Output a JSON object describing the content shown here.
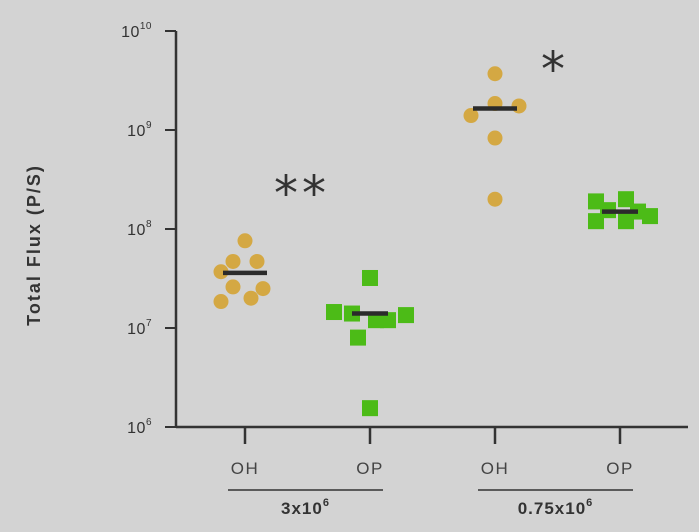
{
  "chart_data": {
    "type": "scatter",
    "ylabel": "Total Flux (P/S)",
    "y_scale": "log",
    "ylim": [
      1000000,
      10000000000
    ],
    "y_ticks": [
      {
        "base": "10",
        "exp": "6"
      },
      {
        "base": "10",
        "exp": "7"
      },
      {
        "base": "10",
        "exp": "8"
      },
      {
        "base": "10",
        "exp": "9"
      },
      {
        "base": "10",
        "exp": "10"
      }
    ],
    "categories": [
      "OH",
      "OP",
      "OH",
      "OP"
    ],
    "groups": [
      {
        "base": "3x10",
        "exp": "6",
        "categories": [
          0,
          1
        ]
      },
      {
        "base": "0.75x10",
        "exp": "6",
        "categories": [
          2,
          3
        ]
      }
    ],
    "significance": [
      {
        "label": "**",
        "category": 0
      },
      {
        "label": "*",
        "category": 2
      }
    ],
    "colors": {
      "OH": "#d4a843",
      "OP": "#4cbb17",
      "median": "#2b2b2b",
      "axis": "#333333",
      "background": "#d3d3d3"
    },
    "series": [
      {
        "category": 0,
        "marker": "circle",
        "median": 36000000,
        "points": [
          {
            "o": 0,
            "v": 76000000
          },
          {
            "o": -1,
            "v": 47000000
          },
          {
            "o": 1,
            "v": 47000000
          },
          {
            "o": -2,
            "v": 37000000
          },
          {
            "o": -1,
            "v": 26000000
          },
          {
            "o": 1.5,
            "v": 25000000
          },
          {
            "o": -2,
            "v": 18500000
          },
          {
            "o": 0.5,
            "v": 20000000
          }
        ]
      },
      {
        "category": 1,
        "marker": "square",
        "median": 14000000,
        "points": [
          {
            "o": 0,
            "v": 32000000
          },
          {
            "o": -3,
            "v": 14500000
          },
          {
            "o": -1.5,
            "v": 14000000
          },
          {
            "o": 0.5,
            "v": 12000000
          },
          {
            "o": 1.5,
            "v": 12000000
          },
          {
            "o": 3,
            "v": 13500000
          },
          {
            "o": -1,
            "v": 8000000
          },
          {
            "o": 0,
            "v": 1550000
          }
        ]
      },
      {
        "category": 2,
        "marker": "circle",
        "median": 1650000000,
        "points": [
          {
            "o": 0,
            "v": 3700000000
          },
          {
            "o": 0,
            "v": 1850000000
          },
          {
            "o": 2,
            "v": 1750000000
          },
          {
            "o": -2,
            "v": 1400000000
          },
          {
            "o": 0,
            "v": 830000000
          },
          {
            "o": 0,
            "v": 200000000
          }
        ]
      },
      {
        "category": 3,
        "marker": "square",
        "median": 150000000,
        "points": [
          {
            "o": -2,
            "v": 190000000
          },
          {
            "o": 0.5,
            "v": 200000000
          },
          {
            "o": -1,
            "v": 155000000
          },
          {
            "o": 1.5,
            "v": 150000000
          },
          {
            "o": 2.5,
            "v": 135000000
          },
          {
            "o": -2,
            "v": 120000000
          },
          {
            "o": 0.5,
            "v": 120000000
          }
        ]
      }
    ]
  }
}
